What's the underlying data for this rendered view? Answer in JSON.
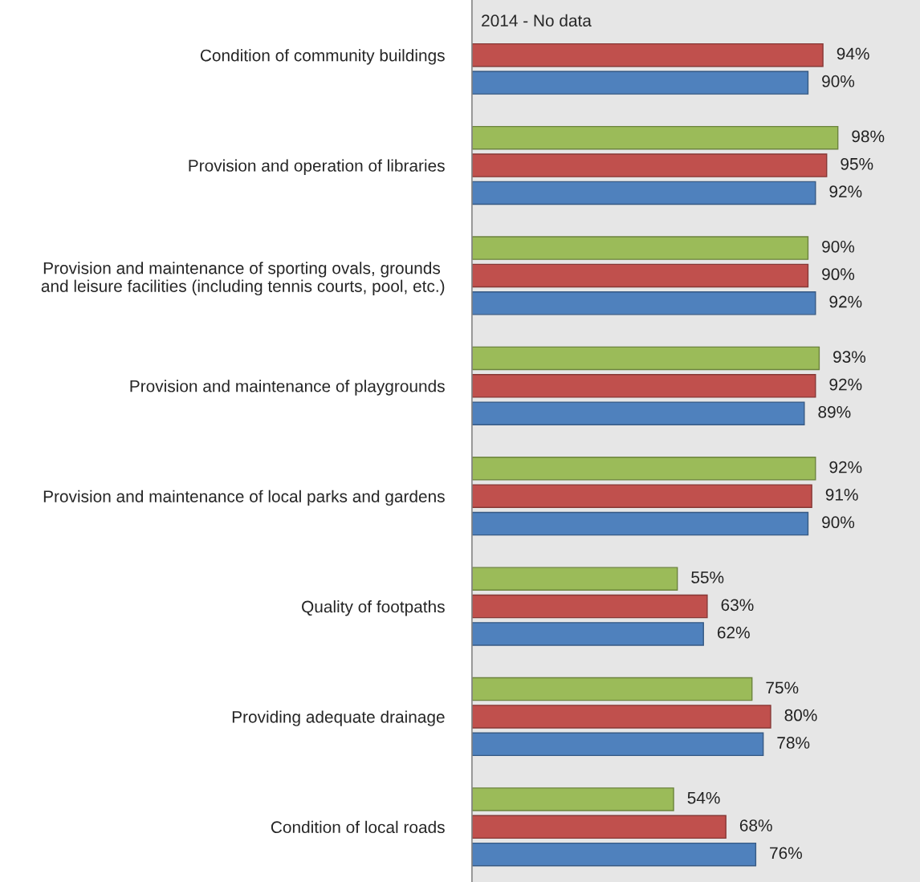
{
  "chart_data": {
    "type": "bar",
    "orientation": "horizontal",
    "categories": [
      "Condition of community buildings",
      "Provision and operation of libraries",
      "Provision and maintenance of sporting ovals, grounds \nand leisure facilities (including tennis courts, pool, etc.)",
      "Provision and maintenance of playgrounds",
      "Provision and maintenance of local parks and gardens",
      "Quality of footpaths",
      "Providing adequate drainage",
      "Condition of local roads"
    ],
    "series": [
      {
        "color": "#9bbb59",
        "values": [
          null,
          98,
          90,
          93,
          92,
          55,
          75,
          54
        ],
        "value_labels": [
          null,
          "98%",
          "90%",
          "93%",
          "92%",
          "55%",
          "75%",
          "54%"
        ]
      },
      {
        "color": "#c0504d",
        "values": [
          94,
          95,
          90,
          92,
          91,
          63,
          80,
          68
        ],
        "value_labels": [
          "94%",
          "95%",
          "90%",
          "92%",
          "91%",
          "63%",
          "80%",
          "68%"
        ]
      },
      {
        "color": "#4f81bd",
        "values": [
          90,
          92,
          92,
          89,
          90,
          62,
          78,
          76
        ],
        "value_labels": [
          "90%",
          "92%",
          "92%",
          "89%",
          "90%",
          "62%",
          "78%",
          "76%"
        ]
      }
    ],
    "xlim": [
      0,
      120
    ],
    "tick_labels": "y",
    "annotations": [
      "2014 - No data"
    ]
  }
}
